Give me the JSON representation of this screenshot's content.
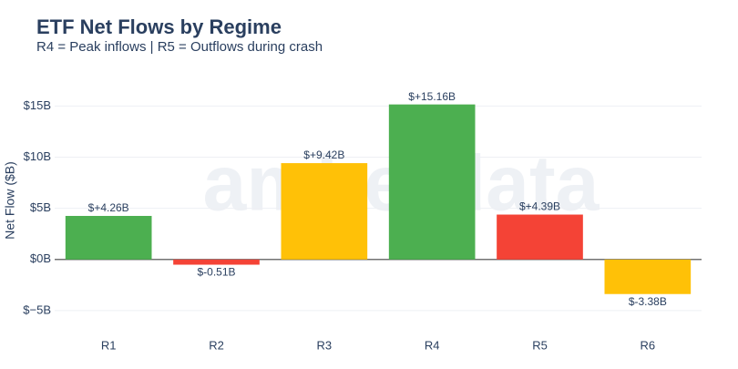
{
  "chart_data": {
    "type": "bar",
    "title": "ETF Net Flows by Regime",
    "subtitle": "R4 = Peak inflows | R5 = Outflows during crash",
    "y_label": "Net Flow ($B)",
    "watermark": "amberdata",
    "categories": [
      "R1",
      "R2",
      "R3",
      "R4",
      "R5",
      "R6"
    ],
    "values": [
      4.26,
      -0.51,
      9.42,
      15.16,
      4.39,
      -3.38
    ],
    "value_labels": [
      "$+4.26B",
      "$-0.51B",
      "$+9.42B",
      "$+15.16B",
      "$+4.39B",
      "$-3.38B"
    ],
    "colors": [
      "#4caf50",
      "#f44336",
      "#ffc107",
      "#4caf50",
      "#f44336",
      "#ffc107"
    ],
    "ylim": [
      -6.7,
      17.8
    ],
    "yticks": [
      {
        "value": -5,
        "label": "$−5B"
      },
      {
        "value": 0,
        "label": "$0B"
      },
      {
        "value": 5,
        "label": "$5B"
      },
      {
        "value": 10,
        "label": "$10B"
      },
      {
        "value": 15,
        "label": "$15B"
      }
    ],
    "grid": true
  }
}
